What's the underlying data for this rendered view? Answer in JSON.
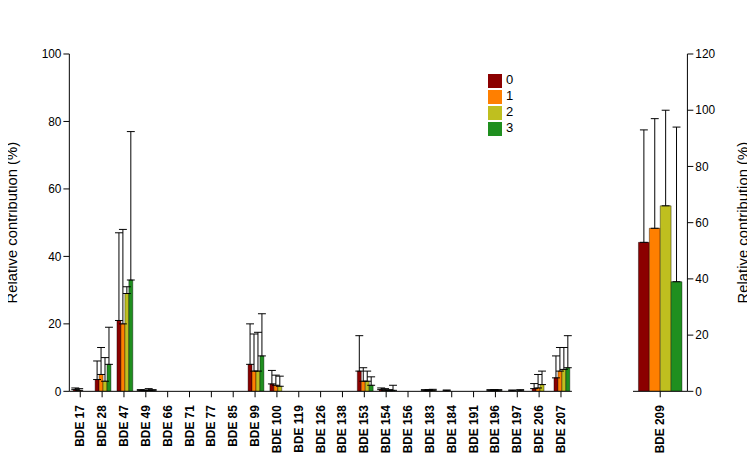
{
  "chart_data": [
    {
      "type": "bar",
      "ylabel": "Relative contribution (%)",
      "ylim": [
        0,
        100
      ],
      "yticks": [
        0,
        20,
        40,
        60,
        80,
        100
      ],
      "legend": "upper right",
      "categories": [
        "BDE 17",
        "BDE 28",
        "BDE 47",
        "BDE 49",
        "BDE 66",
        "BDE 71",
        "BDE 77",
        "BDE 85",
        "BDE 99",
        "BDE 100",
        "BDE 119",
        "BDE 126",
        "BDE 138",
        "BDE 153",
        "BDE 154",
        "BDE 156",
        "BDE 183",
        "BDE 184",
        "BDE 191",
        "BDE 196",
        "BDE 197",
        "BDE 206",
        "BDE 207"
      ],
      "series": [
        {
          "name": "0",
          "color": "#8b0000",
          "values": [
            0.5,
            3.5,
            21,
            0.3,
            0,
            0,
            0,
            0,
            8,
            2.2,
            0,
            0,
            0,
            6,
            0.5,
            0,
            0.2,
            0.2,
            0,
            0.2,
            0.2,
            0.8,
            4
          ],
          "errors": [
            0.5,
            5.5,
            26,
            0.2,
            0,
            0,
            0,
            0,
            12,
            4,
            0,
            0,
            0,
            10.5,
            0.5,
            0,
            0.3,
            0.2,
            0,
            0.3,
            0.2,
            1.5,
            6.5
          ]
        },
        {
          "name": "1",
          "color": "#ff7f00",
          "values": [
            0.3,
            5,
            20,
            0.2,
            0,
            0,
            0,
            0,
            6,
            1.8,
            0,
            0,
            0,
            3,
            0.3,
            0,
            0.2,
            0,
            0,
            0.2,
            0,
            1,
            6
          ],
          "errors": [
            0.5,
            8,
            28,
            0.2,
            0,
            0,
            0,
            0,
            11,
            3,
            0,
            0,
            0,
            4,
            0.5,
            0,
            0.3,
            0,
            0,
            0.3,
            0,
            4,
            7
          ]
        },
        {
          "name": "2",
          "color": "#bfbf1f",
          "values": [
            0,
            3,
            29,
            0.3,
            0,
            0,
            0,
            0,
            6,
            1.5,
            0,
            0,
            0,
            3,
            0.2,
            0,
            0.3,
            0,
            0,
            0.2,
            0.2,
            2,
            6.5
          ],
          "errors": [
            0,
            7,
            2,
            0.5,
            0,
            0,
            0,
            0,
            11.5,
            3,
            0,
            0,
            0,
            3,
            0.3,
            0,
            0.3,
            0,
            0,
            0.3,
            0.3,
            4,
            6.5
          ]
        },
        {
          "name": "3",
          "color": "#1f8f1f",
          "values": [
            0,
            8,
            33,
            0.2,
            0,
            0,
            0,
            0,
            10.5,
            0,
            0,
            0,
            0,
            1.8,
            0.3,
            0,
            0,
            0,
            0,
            0,
            0,
            0,
            7
          ],
          "errors": [
            0,
            11,
            44,
            0.3,
            0,
            0,
            0,
            0,
            12.5,
            0,
            0,
            0,
            0,
            2.5,
            1.5,
            0,
            0,
            0,
            0,
            0,
            0,
            0,
            9.5
          ]
        }
      ]
    },
    {
      "type": "bar",
      "ylabel": "Relative contribution (%)",
      "ylim": [
        0,
        120
      ],
      "yticks": [
        0,
        20,
        40,
        60,
        80,
        100,
        120
      ],
      "categories": [
        "BDE 209"
      ],
      "series": [
        {
          "name": "0",
          "color": "#8b0000",
          "values": [
            53
          ],
          "errors": [
            40
          ]
        },
        {
          "name": "1",
          "color": "#ff7f00",
          "values": [
            58
          ],
          "errors": [
            39
          ]
        },
        {
          "name": "2",
          "color": "#bfbf1f",
          "values": [
            66
          ],
          "errors": [
            34
          ]
        },
        {
          "name": "3",
          "color": "#1f8f1f",
          "values": [
            39
          ],
          "errors": [
            55
          ]
        }
      ]
    }
  ]
}
